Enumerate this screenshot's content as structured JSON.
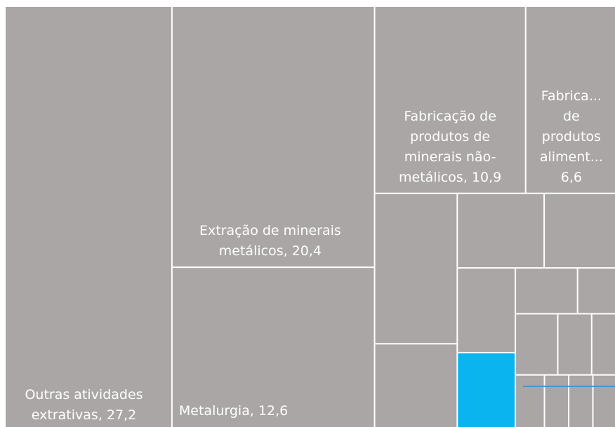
{
  "chart_data": {
    "type": "treemap",
    "labels": [
      "Outras atividades extrativas, 27,2",
      "Extração de minerais metálicos, 20,4",
      "Metalurgia, 12,6",
      "Fabricação de produtos de minerais não-metálicos, 10,9",
      "Fabrica... de produtos aliment... 6,6",
      null,
      null,
      null,
      null,
      null,
      null,
      null,
      null,
      null,
      null,
      null,
      null,
      null,
      null,
      null
    ],
    "values": [
      27.2,
      20.4,
      12.6,
      10.9,
      6.6,
      4.8,
      2.7,
      2.5,
      2.1,
      1.9,
      1.7,
      1.1,
      0.7,
      1.0,
      0.8,
      0.6,
      0.6,
      0.5,
      0.5,
      0.5
    ],
    "colors": [
      "#aaa6a5",
      "#aaa6a5",
      "#aaa6a5",
      "#aaa6a5",
      "#aaa6a5",
      "#aaa6a5",
      "#aaa6a5",
      "#aaa6a5",
      "#aaa6a5",
      "#aaa6a5",
      "#0ab4ee",
      "#aaa6a5",
      "#aaa6a5",
      "#aaa6a5",
      "#aaa6a5",
      "#aaa6a5",
      "#aaa6a5",
      "#aaa6a5",
      "#aaa6a5",
      "#aaa6a5"
    ]
  }
}
